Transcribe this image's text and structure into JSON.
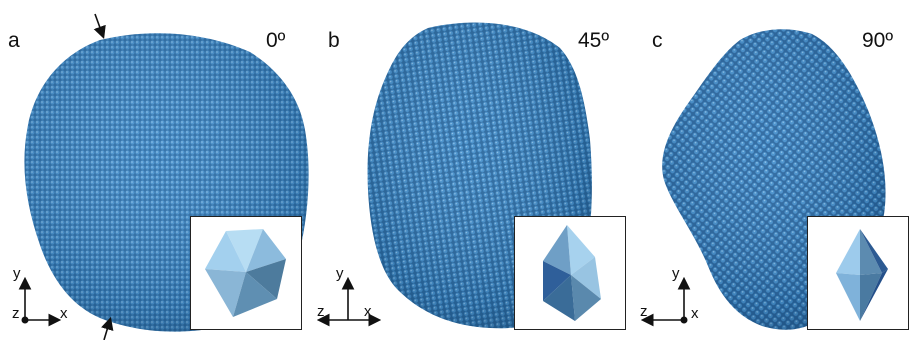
{
  "panels": [
    {
      "letter": "a",
      "angle": "0º"
    },
    {
      "letter": "b",
      "angle": "45º"
    },
    {
      "letter": "c",
      "angle": "90º"
    }
  ],
  "axes": {
    "a": {
      "vertical": "y",
      "horizontal": "x",
      "depth": "z"
    },
    "b": {
      "vertical": "y",
      "horizontal": "x",
      "depth": "z"
    },
    "c": {
      "vertical": "y",
      "horizontal": "x",
      "depth": "z"
    }
  },
  "colors": {
    "atom_blue": "#3f87c4",
    "atom_dark": "#1f5f94",
    "inset_face_light": "#a9d3ee",
    "inset_face_mid": "#7fb0d4",
    "inset_face_dark": "#4e7d9f"
  }
}
